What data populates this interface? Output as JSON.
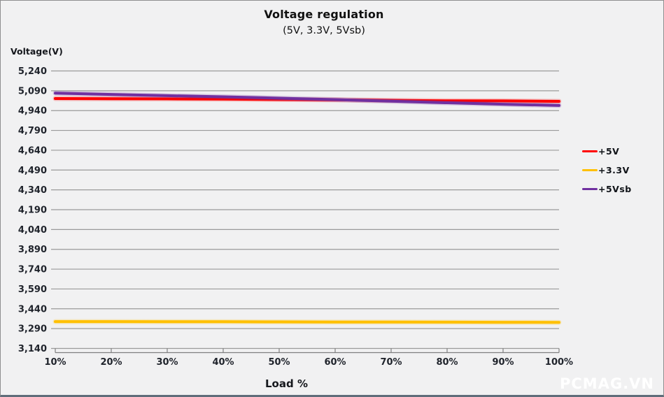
{
  "watermark": "PCMAG.VN",
  "colors": {
    "background": "#f1f1f2",
    "gridline": "#9a9a9a",
    "axis_line": "#808080",
    "text": "#20242c",
    "frame_border": "#8f8f8f",
    "bottom_bar": "#5f6d7a",
    "watermark": "#ffffff"
  },
  "chart_data": {
    "type": "line",
    "title": "Voltage regulation",
    "subtitle": "(5V, 3.3V, 5Vsb)",
    "xlabel": "Load %",
    "ylabel": "Voltage(V)",
    "categories": [
      "10%",
      "20%",
      "30%",
      "40%",
      "50%",
      "60%",
      "70%",
      "80%",
      "90%",
      "100%"
    ],
    "ylim": [
      3140,
      5240
    ],
    "y_tick_step": 150,
    "y_tick_labels": [
      "5,240",
      "5,090",
      "4,940",
      "4,790",
      "4,640",
      "4,490",
      "4,340",
      "4,190",
      "4,040",
      "3,890",
      "3,740",
      "3,590",
      "3,440",
      "3,290",
      "3,140"
    ],
    "grid": "horizontal",
    "legend_position": "right",
    "series": [
      {
        "name": "+5V",
        "color": "#ff0000",
        "values": [
          5031,
          5030,
          5029,
          5027,
          5024,
          5021,
          5017,
          5014,
          5013,
          5010
        ]
      },
      {
        "name": "+3.3V",
        "color": "#ffc000",
        "values": [
          3343,
          3343,
          3342,
          3342,
          3341,
          3340,
          3340,
          3339,
          3338,
          3337
        ]
      },
      {
        "name": "+5Vsb",
        "color": "#7030a0",
        "values": [
          5072,
          5062,
          5053,
          5044,
          5034,
          5023,
          5011,
          4999,
          4988,
          4979
        ]
      }
    ]
  }
}
